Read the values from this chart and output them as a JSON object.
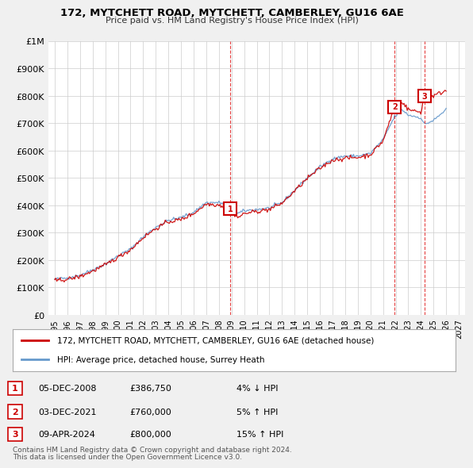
{
  "title": "172, MYTCHETT ROAD, MYTCHETT, CAMBERLEY, GU16 6AE",
  "subtitle": "Price paid vs. HM Land Registry's House Price Index (HPI)",
  "legend_line1": "172, MYTCHETT ROAD, MYTCHETT, CAMBERLEY, GU16 6AE (detached house)",
  "legend_line2": "HPI: Average price, detached house, Surrey Heath",
  "footer1": "Contains HM Land Registry data © Crown copyright and database right 2024.",
  "footer2": "This data is licensed under the Open Government Licence v3.0.",
  "sales": [
    {
      "label": "1",
      "date": "05-DEC-2008",
      "price": "£386,750",
      "pct": "4% ↓ HPI"
    },
    {
      "label": "2",
      "date": "03-DEC-2021",
      "price": "£760,000",
      "pct": "5% ↑ HPI"
    },
    {
      "label": "3",
      "date": "09-APR-2024",
      "price": "£800,000",
      "pct": "15% ↑ HPI"
    }
  ],
  "sale_years": [
    2008.92,
    2021.92,
    2024.27
  ],
  "sale_values": [
    386750,
    760000,
    800000
  ],
  "vline_color": "#dd0000",
  "hpi_color": "#6699cc",
  "price_color": "#cc0000",
  "background_color": "#f0f0f0",
  "plot_bg_color": "#ffffff",
  "ylim": [
    0,
    1000000
  ],
  "xlim_start": 1994.5,
  "xlim_end": 2027.5,
  "yticks": [
    0,
    100000,
    200000,
    300000,
    400000,
    500000,
    600000,
    700000,
    800000,
    900000,
    1000000
  ],
  "ytick_labels": [
    "£0",
    "£100K",
    "£200K",
    "£300K",
    "£400K",
    "£500K",
    "£600K",
    "£700K",
    "£800K",
    "£900K",
    "£1M"
  ],
  "hpi_anchors_x": [
    1995.0,
    1996.0,
    1997.0,
    1998.0,
    1999.0,
    2000.0,
    2001.0,
    2002.0,
    2003.0,
    2004.0,
    2005.0,
    2006.0,
    2007.0,
    2008.0,
    2008.92,
    2009.5,
    2010.0,
    2011.0,
    2012.0,
    2013.0,
    2014.0,
    2015.0,
    2016.0,
    2017.0,
    2018.0,
    2019.0,
    2020.0,
    2021.0,
    2021.92,
    2022.5,
    2023.0,
    2024.0,
    2024.27,
    2025.0,
    2026.0
  ],
  "hpi_anchors_y": [
    130000,
    135000,
    145000,
    165000,
    185000,
    215000,
    240000,
    285000,
    320000,
    345000,
    355000,
    375000,
    410000,
    410000,
    400000,
    370000,
    380000,
    385000,
    390000,
    410000,
    455000,
    500000,
    540000,
    570000,
    580000,
    580000,
    590000,
    640000,
    724000,
    750000,
    730000,
    720000,
    696000,
    710000,
    750000
  ],
  "price_anchors_x": [
    1995.0,
    1996.0,
    1997.0,
    1998.0,
    1999.0,
    2000.0,
    2001.0,
    2002.0,
    2003.0,
    2004.0,
    2005.0,
    2006.0,
    2007.0,
    2008.0,
    2008.92,
    2009.5,
    2010.0,
    2011.0,
    2012.0,
    2013.0,
    2014.0,
    2015.0,
    2016.0,
    2017.0,
    2018.0,
    2019.0,
    2020.0,
    2021.0,
    2021.92,
    2022.5,
    2023.0,
    2024.0,
    2024.27,
    2025.0,
    2026.0
  ],
  "price_anchors_y": [
    125000,
    130000,
    140000,
    160000,
    182000,
    210000,
    238000,
    282000,
    315000,
    340000,
    348000,
    370000,
    405000,
    402000,
    386750,
    355000,
    370000,
    378000,
    385000,
    408000,
    452000,
    498000,
    535000,
    565000,
    572000,
    575000,
    585000,
    635000,
    760000,
    780000,
    750000,
    740000,
    800000,
    800000,
    820000
  ]
}
